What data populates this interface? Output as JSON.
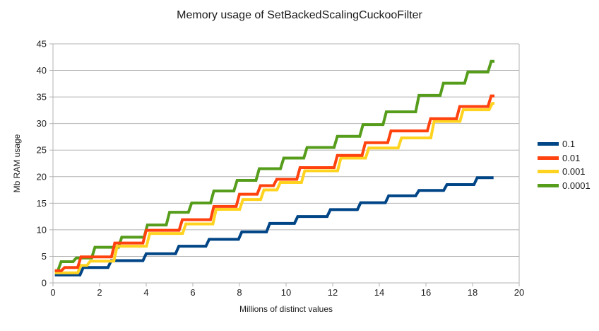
{
  "chart_data": {
    "type": "line",
    "step": true,
    "title": "Memory usage of SetBackedScalingCuckooFilter",
    "xlabel": "Millions of distinct values",
    "ylabel": "Mb RAM usage",
    "xlim": [
      0,
      20
    ],
    "ylim": [
      0,
      45
    ],
    "xticks": [
      0,
      2,
      4,
      6,
      8,
      10,
      12,
      14,
      16,
      18,
      20
    ],
    "yticks": [
      0,
      5,
      10,
      15,
      20,
      25,
      30,
      35,
      40,
      45
    ],
    "grid": "horizontal",
    "grid_color": "#b3b3b3",
    "axis_color": "#b3b3b3",
    "legend_position": "right",
    "series": [
      {
        "name": "0.1",
        "color": "#004586",
        "x_end": 18.9,
        "points": [
          [
            0.08,
            1.5
          ],
          [
            1.3,
            2.9
          ],
          [
            2.5,
            4.2
          ],
          [
            4.0,
            5.5
          ],
          [
            5.4,
            6.9
          ],
          [
            6.7,
            8.2
          ],
          [
            8.1,
            9.6
          ],
          [
            9.3,
            11.2
          ],
          [
            10.5,
            12.5
          ],
          [
            11.9,
            13.8
          ],
          [
            13.2,
            15.1
          ],
          [
            14.4,
            16.4
          ],
          [
            15.7,
            17.4
          ],
          [
            16.9,
            18.5
          ],
          [
            18.2,
            19.8
          ]
        ]
      },
      {
        "name": "0.01",
        "color": "#FF420E",
        "x_end": 18.94,
        "points": [
          [
            0.08,
            2.3
          ],
          [
            0.5,
            2.9
          ],
          [
            1.2,
            4.9
          ],
          [
            2.65,
            7.5
          ],
          [
            4.0,
            9.9
          ],
          [
            5.55,
            11.9
          ],
          [
            6.9,
            14.4
          ],
          [
            8.0,
            16.7
          ],
          [
            8.9,
            18.3
          ],
          [
            9.6,
            19.5
          ],
          [
            10.6,
            21.7
          ],
          [
            12.2,
            24.0
          ],
          [
            13.4,
            26.4
          ],
          [
            14.5,
            28.6
          ],
          [
            16.2,
            30.9
          ],
          [
            17.45,
            33.2
          ],
          [
            18.8,
            35.2
          ]
        ]
      },
      {
        "name": "0.001",
        "color": "#FFD320",
        "x_end": 18.94,
        "points": [
          [
            0.08,
            1.9
          ],
          [
            1.2,
            3.3
          ],
          [
            1.6,
            4.1
          ],
          [
            2.75,
            6.9
          ],
          [
            4.15,
            9.3
          ],
          [
            5.7,
            11.1
          ],
          [
            7.0,
            13.85
          ],
          [
            8.15,
            15.7
          ],
          [
            9.05,
            17.5
          ],
          [
            9.75,
            18.9
          ],
          [
            10.8,
            21.1
          ],
          [
            12.35,
            23.5
          ],
          [
            13.55,
            25.4
          ],
          [
            14.95,
            27.3
          ],
          [
            16.35,
            30.4
          ],
          [
            17.6,
            32.6
          ],
          [
            18.85,
            33.8
          ]
        ]
      },
      {
        "name": "0.0001",
        "color": "#579D1C",
        "x_end": 18.94,
        "points": [
          [
            0.08,
            2.3
          ],
          [
            0.35,
            4.0
          ],
          [
            1.0,
            4.7
          ],
          [
            1.8,
            6.7
          ],
          [
            2.95,
            8.6
          ],
          [
            4.05,
            10.9
          ],
          [
            5.0,
            13.3
          ],
          [
            5.95,
            15.05
          ],
          [
            6.9,
            17.3
          ],
          [
            7.9,
            19.3
          ],
          [
            8.85,
            21.5
          ],
          [
            9.9,
            23.5
          ],
          [
            10.9,
            25.5
          ],
          [
            12.2,
            27.6
          ],
          [
            13.3,
            29.8
          ],
          [
            14.3,
            32.2
          ],
          [
            15.7,
            35.3
          ],
          [
            16.75,
            37.6
          ],
          [
            17.8,
            39.7
          ],
          [
            18.8,
            41.7
          ]
        ]
      }
    ]
  }
}
